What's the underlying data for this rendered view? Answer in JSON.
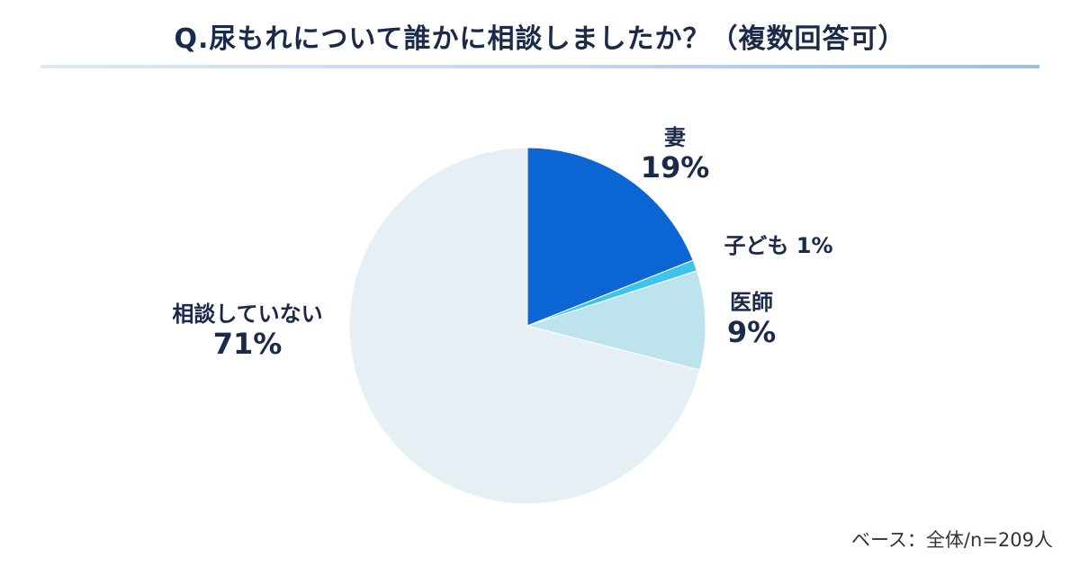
{
  "title": "Q.尿もれについて誰かに相談しましたか？（複数回答可）",
  "footnote": "ベース：全体/n=209人",
  "chart_data": {
    "type": "pie",
    "title": "Q.尿もれについて誰かに相談しましたか？（複数回答可）",
    "categories": [
      "妻",
      "子ども",
      "医師",
      "相談していない"
    ],
    "values": [
      19,
      1,
      9,
      71
    ],
    "value_labels": [
      "19%",
      "1%",
      "9%",
      "71%"
    ],
    "inline_labels": [
      "",
      "子ども 1%",
      "",
      ""
    ],
    "colors": [
      "#0b66d4",
      "#3fc3e8",
      "#bde3ef",
      "#e6f0f4"
    ],
    "unit": "%",
    "start_angle": "12 o'clock",
    "direction": "clockwise",
    "legend": "none (direct labels)"
  }
}
